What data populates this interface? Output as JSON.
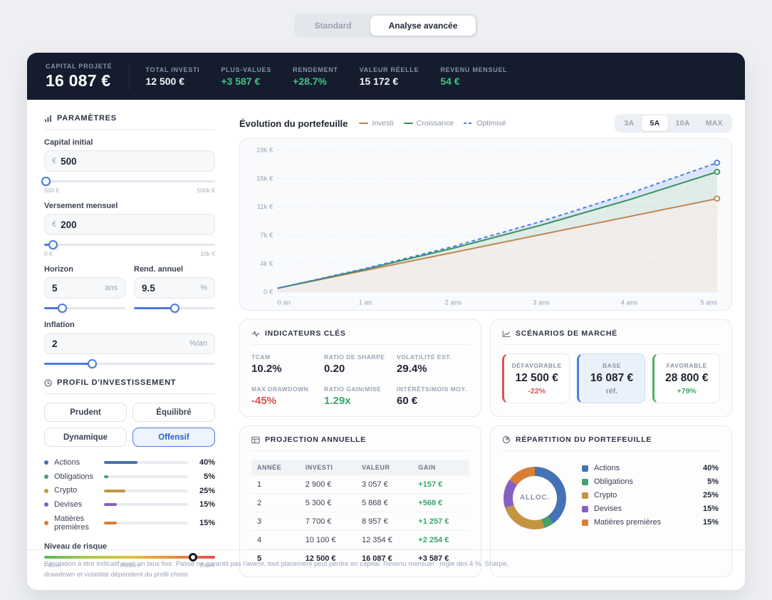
{
  "toggle": {
    "standard": "Standard",
    "advanced": "Analyse avancée"
  },
  "statsbar": {
    "hero": {
      "label": "CAPITAL PROJETÉ",
      "value": "16 087 €"
    },
    "stats": [
      {
        "label": "TOTAL INVESTI",
        "value": "12 500 €"
      },
      {
        "label": "PLUS-VALUES",
        "value": "+3 587 €"
      },
      {
        "label": "RENDEMENT",
        "value": "+28.7%"
      },
      {
        "label": "VALEUR RÉELLE",
        "value": "15 172 €"
      },
      {
        "label": "REVENU MENSUEL",
        "value": "54 €"
      }
    ]
  },
  "sidebar": {
    "params_title": "PARAMÈTRES",
    "fields": {
      "capital": {
        "label": "Capital initial",
        "prefix": "€",
        "value": "500",
        "min": "500 €",
        "max": "500k €",
        "slider_pct": 1
      },
      "versement": {
        "label": "Versement mensuel",
        "prefix": "€",
        "value": "200",
        "min": "0 €",
        "max": "10k €",
        "slider_pct": 5
      },
      "horizon": {
        "label": "Horizon",
        "value": "5",
        "suffix": "ans",
        "slider_pct": 22
      },
      "rendement": {
        "label": "Rend. annuel",
        "value": "9.5",
        "suffix": "%",
        "slider_pct": 50
      },
      "inflation": {
        "label": "Inflation",
        "value": "2",
        "suffix": "%/an",
        "slider_pct": 28
      }
    },
    "profile_title": "PROFIL D'INVESTISSEMENT",
    "profiles": [
      "Prudent",
      "Équilibré",
      "Dynamique",
      "Offensif"
    ],
    "active_profile": "Offensif",
    "risk": {
      "label": "Niveau de risque",
      "low": "Faible",
      "mid": "Modéré",
      "high": "Élevé",
      "knob_pct": 87
    }
  },
  "allocation": [
    {
      "label": "Actions",
      "pct": 40,
      "display": "40%",
      "color": "#4472b4"
    },
    {
      "label": "Obligations",
      "pct": 5,
      "display": "5%",
      "color": "#44a06c"
    },
    {
      "label": "Crypto",
      "pct": 25,
      "display": "25%",
      "color": "#c49540"
    },
    {
      "label": "Devises",
      "pct": 15,
      "display": "15%",
      "color": "#8560c2"
    },
    {
      "label": "Matières premières",
      "pct": 15,
      "display": "15%",
      "color": "#d97f35"
    }
  ],
  "chart": {
    "title": "Évolution du portefeuille",
    "legend": [
      {
        "label": "Investi"
      },
      {
        "label": "Croissance"
      },
      {
        "label": "Optimisé"
      }
    ],
    "ranges": [
      "3A",
      "5A",
      "10A",
      "MAX"
    ],
    "active_range": "5A"
  },
  "chart_data": {
    "type": "area",
    "title": "Évolution du portefeuille",
    "x": [
      0,
      1,
      2,
      3,
      4,
      5
    ],
    "x_labels": [
      "0 an",
      "1 an",
      "2 ans",
      "3 ans",
      "4 ans",
      "5 ans"
    ],
    "ytick_labels_top_down": [
      "19k €",
      "15k €",
      "11k €",
      "7k €",
      "4k €",
      "0 €"
    ],
    "ylim": [
      0,
      19000
    ],
    "grid": true,
    "legend_position": "top",
    "series": [
      {
        "name": "Investi",
        "color": "#bf8350",
        "fill": "rgba(191,131,80,0.10)",
        "dashed": false,
        "values": [
          500,
          2900,
          5300,
          7700,
          10100,
          12500
        ]
      },
      {
        "name": "Croissance",
        "color": "#35915c",
        "fill": "rgba(53,145,92,0.13)",
        "dashed": false,
        "values": [
          500,
          3057,
          5868,
          8957,
          12354,
          16087
        ]
      },
      {
        "name": "Optimisé",
        "color": "#4a7de0",
        "fill": "rgba(74,125,224,0.16)",
        "dashed": true,
        "values": [
          500,
          3150,
          6100,
          9450,
          13200,
          17300
        ]
      }
    ]
  },
  "indicators": {
    "title": "INDICATEURS CLÉS",
    "items": [
      {
        "label": "TCAM",
        "value": "10.2%",
        "tone": "dark"
      },
      {
        "label": "RATIO DE SHARPE",
        "value": "0.20",
        "tone": "dark"
      },
      {
        "label": "VOLATILITÉ EST.",
        "value": "29.4%",
        "tone": "dark"
      },
      {
        "label": "MAX DRAWDOWN",
        "value": "-45%",
        "tone": "red"
      },
      {
        "label": "RATIO GAIN/MISE",
        "value": "1.29x",
        "tone": "green"
      },
      {
        "label": "INTÉRÊTS/MOIS MOY.",
        "value": "60 €",
        "tone": "dark"
      }
    ]
  },
  "scenarios": {
    "title": "SCÉNARIOS DE MARCHÉ",
    "items": [
      {
        "label": "DÉFAVORABLE",
        "value": "12 500 €",
        "delta": "-22%",
        "tone": "red"
      },
      {
        "label": "BASE",
        "value": "16 087 €",
        "delta": "réf.",
        "tone": "blue"
      },
      {
        "label": "FAVORABLE",
        "value": "28 800 €",
        "delta": "+79%",
        "tone": "green"
      }
    ]
  },
  "projection": {
    "title": "PROJECTION ANNUELLE",
    "headers": [
      "ANNÉE",
      "INVESTI",
      "VALEUR",
      "GAIN"
    ],
    "rows": [
      {
        "annee": "1",
        "investi": "2 900 €",
        "valeur": "3 057 €",
        "gain": "+157 €"
      },
      {
        "annee": "2",
        "investi": "5 300 €",
        "valeur": "5 868 €",
        "gain": "+568 €"
      },
      {
        "annee": "3",
        "investi": "7 700 €",
        "valeur": "8 957 €",
        "gain": "+1 257 €"
      },
      {
        "annee": "4",
        "investi": "10 100 €",
        "valeur": "12 354 €",
        "gain": "+2 254 €"
      },
      {
        "annee": "5",
        "investi": "12 500 €",
        "valeur": "16 087 €",
        "gain": "+3 587 €"
      }
    ]
  },
  "repartition": {
    "title": "RÉPARTITION DU PORTEFEUILLE",
    "center": "ALLOC."
  },
  "footer": {
    "disclaimer": "Simulation à titre indicatif avec un taux fixe. Passé ne garantit pas l'avenir, tout placement peut perdre en capital. Revenu mensuel : règle des 4 %. Sharpe, drawdown et volatilité dépendent du profil choisi."
  }
}
